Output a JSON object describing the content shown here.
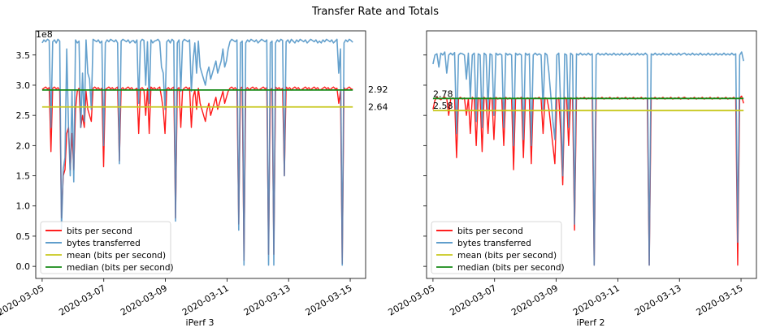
{
  "suptitle": "Transfer Rate and Totals",
  "colors": {
    "bits": "#ff0000",
    "bytes": "#4a90c4",
    "mean": "#c8c81e",
    "median": "#168a16",
    "axis": "#000000"
  },
  "chart_data": [
    {
      "type": "line",
      "xlabel": "iPerf 3",
      "ylabel": "",
      "offset_label": "1e8",
      "ylim": [
        -0.2,
        3.9
      ],
      "yticks": [
        0.0,
        0.5,
        1.0,
        1.5,
        2.0,
        2.5,
        3.0,
        3.5
      ],
      "yticklabels": [
        "0.0",
        "0.5",
        "1.0",
        "1.5",
        "2.0",
        "2.5",
        "3.0",
        "3.5"
      ],
      "xlim": [
        "2020-03-04T19:00",
        "2020-03-15T12:00"
      ],
      "xticks": [
        "2020-03-05",
        "2020-03-07",
        "2020-03-09",
        "2020-03-11",
        "2020-03-13",
        "2020-03-15"
      ],
      "x_start": "2020-03-05T00:00",
      "x_end": "2020-03-15T02:00",
      "legend_placement": "lower-left",
      "legend": [
        "bits per second",
        "bytes transferred",
        "mean (bits per second)",
        "median (bits per second)"
      ],
      "annotations": [
        "2.92",
        "2.64"
      ],
      "mean": 2.64,
      "median": 2.92,
      "series": [
        {
          "name": "bits per second",
          "values": [
            2.93,
            2.95,
            2.97,
            2.94,
            2.96,
            1.9,
            2.95,
            2.97,
            2.94,
            2.96,
            2.92,
            0.8,
            1.5,
            1.6,
            2.2,
            2.3,
            1.6,
            2.2,
            1.6,
            2.6,
            2.9,
            2.95,
            2.3,
            2.5,
            2.3,
            2.9,
            2.6,
            2.5,
            2.4,
            2.95,
            2.97,
            2.94,
            2.96,
            2.92,
            2.95,
            1.65,
            2.93,
            2.95,
            2.97,
            2.94,
            2.96,
            2.92,
            2.95,
            2.97,
            1.75,
            2.94,
            2.96,
            2.92,
            2.95,
            2.97,
            2.94,
            2.96,
            2.92,
            2.93,
            2.95,
            2.2,
            2.94,
            2.96,
            2.92,
            2.5,
            2.95,
            2.2,
            2.97,
            2.94,
            2.96,
            2.92,
            2.95,
            2.97,
            2.8,
            2.6,
            2.2,
            2.94,
            2.96,
            2.92,
            2.95,
            2.97,
            0.8,
            2.94,
            2.96,
            2.3,
            2.92,
            2.95,
            2.97,
            2.94,
            2.96,
            2.3,
            2.8,
            2.92,
            2.6,
            2.95,
            2.7,
            2.6,
            2.5,
            2.4,
            2.6,
            2.7,
            2.5,
            2.6,
            2.7,
            2.8,
            2.6,
            2.7,
            2.8,
            2.9,
            2.7,
            2.8,
            2.9,
            2.95,
            2.97,
            2.94,
            2.96,
            2.92,
            0.7,
            2.95,
            2.97,
            0.1,
            2.94,
            2.96,
            2.92,
            2.95,
            2.97,
            2.94,
            2.96,
            2.92,
            2.93,
            2.95,
            2.97,
            2.94,
            2.96,
            0.2,
            2.92,
            2.95,
            0.2,
            2.97,
            2.94,
            2.96,
            2.92,
            2.95,
            1.5,
            2.97,
            2.94,
            2.96,
            2.92,
            2.95,
            2.97,
            2.94,
            2.96,
            2.92,
            2.93,
            2.95,
            2.97,
            2.94,
            2.96,
            2.92,
            2.95,
            2.97,
            2.94,
            2.96,
            2.92,
            2.93,
            2.95,
            2.97,
            2.94,
            2.96,
            2.92,
            2.95,
            2.97,
            2.94,
            2.95,
            2.7,
            2.9,
            0.05,
            2.96,
            2.92,
            2.95,
            2.97,
            2.94,
            2.93
          ]
        },
        {
          "name": "bytes transferred",
          "values": [
            3.7,
            3.75,
            3.72,
            3.76,
            3.74,
            2.3,
            3.72,
            3.75,
            3.7,
            3.76,
            3.73,
            0.6,
            1.6,
            1.8,
            3.6,
            2.3,
            1.5,
            2.9,
            1.4,
            3.75,
            3.7,
            3.73,
            2.3,
            3.2,
            2.4,
            3.75,
            3.2,
            3.1,
            2.6,
            3.76,
            3.74,
            3.72,
            3.75,
            3.7,
            3.73,
            2.0,
            3.7,
            3.75,
            3.72,
            3.76,
            3.74,
            3.72,
            3.75,
            3.7,
            1.7,
            3.73,
            3.76,
            3.74,
            3.72,
            3.75,
            3.7,
            3.73,
            3.74,
            3.7,
            3.75,
            2.7,
            3.72,
            3.76,
            3.74,
            3.0,
            3.72,
            2.7,
            3.75,
            3.7,
            3.73,
            3.74,
            3.76,
            3.72,
            3.3,
            3.2,
            2.6,
            3.72,
            3.75,
            3.7,
            3.76,
            3.73,
            0.75,
            3.7,
            3.75,
            2.9,
            3.72,
            3.76,
            3.74,
            3.72,
            3.75,
            2.9,
            3.4,
            3.7,
            3.2,
            3.73,
            3.3,
            3.2,
            3.1,
            3.0,
            3.2,
            3.3,
            3.1,
            3.2,
            3.3,
            3.4,
            3.2,
            3.3,
            3.4,
            3.6,
            3.3,
            3.4,
            3.6,
            3.72,
            3.76,
            3.74,
            3.72,
            3.75,
            0.6,
            3.7,
            3.73,
            0.02,
            3.7,
            3.75,
            3.72,
            3.76,
            3.74,
            3.72,
            3.75,
            3.7,
            3.73,
            3.76,
            3.74,
            3.72,
            3.75,
            0.02,
            3.7,
            3.73,
            0.02,
            3.7,
            3.75,
            3.72,
            3.76,
            3.74,
            1.5,
            3.72,
            3.75,
            3.7,
            3.76,
            3.73,
            3.7,
            3.75,
            3.72,
            3.76,
            3.74,
            3.72,
            3.75,
            3.7,
            3.73,
            3.76,
            3.74,
            3.72,
            3.75,
            3.7,
            3.73,
            3.7,
            3.75,
            3.72,
            3.76,
            3.74,
            3.72,
            3.75,
            3.7,
            3.73,
            3.76,
            3.2,
            3.6,
            0.02,
            3.7,
            3.75,
            3.72,
            3.76,
            3.74,
            3.71
          ]
        }
      ]
    },
    {
      "type": "line",
      "xlabel": "iPerf 2",
      "ylabel": "",
      "ylim": [
        -0.2,
        3.9
      ],
      "yticks": [
        0.0,
        0.5,
        1.0,
        1.5,
        2.0,
        2.5,
        3.0,
        3.5
      ],
      "yticklabels": [],
      "xlim": [
        "2020-03-04T19:00",
        "2020-03-15T12:00"
      ],
      "xticks": [
        "2020-03-05",
        "2020-03-07",
        "2020-03-09",
        "2020-03-11",
        "2020-03-13",
        "2020-03-15"
      ],
      "x_start": "2020-03-05T00:00",
      "x_end": "2020-03-15T02:00",
      "legend_placement": "lower-left",
      "legend": [
        "bits per second",
        "bytes transferred",
        "mean (bits per second)",
        "median (bits per second)"
      ],
      "annotations": [
        "2.78",
        "2.58"
      ],
      "mean": 2.58,
      "median": 2.78,
      "series": [
        {
          "name": "bits per second",
          "values": [
            2.6,
            2.75,
            2.8,
            2.78,
            2.76,
            2.79,
            2.8,
            2.78,
            2.5,
            2.77,
            2.79,
            2.78,
            1.8,
            2.78,
            2.8,
            2.77,
            2.79,
            2.5,
            2.78,
            2.2,
            2.8,
            2.77,
            2.0,
            2.79,
            2.78,
            1.9,
            2.8,
            2.77,
            2.2,
            2.79,
            2.78,
            2.1,
            2.8,
            2.77,
            2.79,
            2.78,
            2.0,
            2.8,
            2.77,
            2.79,
            2.78,
            1.6,
            2.77,
            2.79,
            2.78,
            2.8,
            1.8,
            2.77,
            2.79,
            2.78,
            1.7,
            2.77,
            2.79,
            2.78,
            2.8,
            2.77,
            2.2,
            2.79,
            2.78,
            2.6,
            2.3,
            2.0,
            1.7,
            2.77,
            2.79,
            2.2,
            1.35,
            2.8,
            2.77,
            2.0,
            2.79,
            2.78,
            0.6,
            2.8,
            2.77,
            2.79,
            2.78,
            2.8,
            2.77,
            2.79,
            2.78,
            2.8,
            0.02,
            2.77,
            2.79,
            2.78,
            2.8,
            2.77,
            2.79,
            2.78,
            2.8,
            2.77,
            2.79,
            2.78,
            2.8,
            2.77,
            2.79,
            2.78,
            2.8,
            2.77,
            2.79,
            2.78,
            2.8,
            2.77,
            2.79,
            2.78,
            2.8,
            2.77,
            2.79,
            2.78,
            0.02,
            2.79,
            2.78,
            2.8,
            2.77,
            2.79,
            2.78,
            2.8,
            2.77,
            2.79,
            2.78,
            2.8,
            2.77,
            2.79,
            2.78,
            2.8,
            2.77,
            2.79,
            2.8,
            2.78,
            2.77,
            2.79,
            2.78,
            2.8,
            2.77,
            2.79,
            2.78,
            2.8,
            2.77,
            2.79,
            2.78,
            2.8,
            2.77,
            2.79,
            2.78,
            2.8,
            2.77,
            2.79,
            2.78,
            2.8,
            2.77,
            2.79,
            2.78,
            2.8,
            2.77,
            0.02,
            2.79,
            2.82,
            2.7
          ]
        },
        {
          "name": "bytes transferred",
          "values": [
            3.35,
            3.5,
            3.52,
            3.3,
            3.53,
            3.5,
            3.55,
            3.2,
            3.5,
            3.53,
            3.5,
            3.54,
            2.2,
            3.5,
            3.53,
            3.52,
            3.5,
            3.1,
            3.53,
            2.8,
            3.5,
            3.53,
            2.4,
            3.52,
            3.5,
            2.3,
            3.53,
            3.5,
            2.6,
            3.52,
            3.5,
            2.5,
            3.53,
            3.5,
            3.52,
            3.5,
            2.3,
            3.53,
            3.5,
            3.52,
            3.5,
            2.0,
            3.53,
            3.5,
            3.52,
            3.5,
            2.1,
            3.53,
            3.5,
            3.52,
            2.0,
            3.5,
            3.53,
            3.5,
            3.52,
            3.5,
            2.6,
            3.53,
            3.5,
            3.2,
            2.8,
            2.4,
            2.1,
            3.5,
            3.53,
            2.6,
            1.5,
            3.52,
            3.5,
            2.3,
            3.53,
            3.5,
            0.7,
            3.52,
            3.5,
            3.53,
            3.5,
            3.52,
            3.5,
            3.53,
            3.5,
            3.52,
            0.02,
            3.5,
            3.53,
            3.5,
            3.52,
            3.5,
            3.53,
            3.5,
            3.52,
            3.5,
            3.53,
            3.5,
            3.52,
            3.5,
            3.53,
            3.5,
            3.52,
            3.5,
            3.53,
            3.5,
            3.52,
            3.5,
            3.53,
            3.5,
            3.52,
            3.5,
            3.53,
            3.5,
            0.02,
            3.52,
            3.5,
            3.53,
            3.5,
            3.52,
            3.5,
            3.53,
            3.5,
            3.52,
            3.5,
            3.53,
            3.5,
            3.52,
            3.5,
            3.53,
            3.5,
            3.52,
            3.53,
            3.5,
            3.52,
            3.5,
            3.53,
            3.5,
            3.52,
            3.5,
            3.53,
            3.5,
            3.52,
            3.5,
            3.53,
            3.5,
            3.52,
            3.5,
            3.53,
            3.5,
            3.52,
            3.5,
            3.53,
            3.5,
            3.52,
            3.5,
            3.53,
            3.5,
            3.52,
            0.4,
            3.5,
            3.55,
            3.4
          ]
        }
      ]
    }
  ]
}
